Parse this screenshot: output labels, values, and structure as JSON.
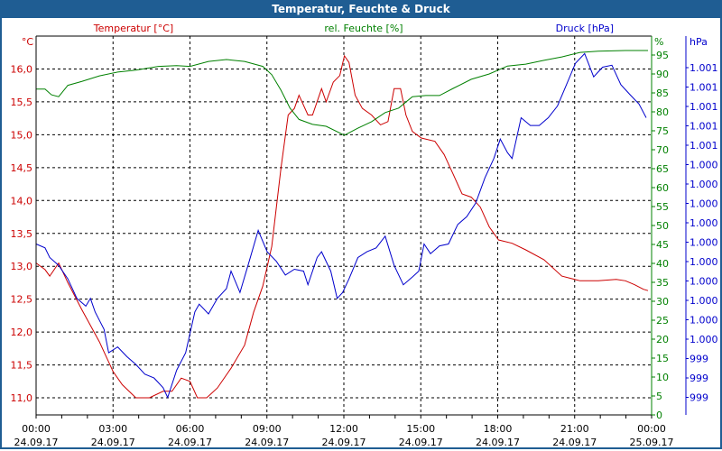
{
  "window": {
    "title": "Temperatur, Feuchte & Druck"
  },
  "chart_data": {
    "type": "line",
    "title": "Temperatur, Feuchte & Druck",
    "x_unit": "hours since 24.09.17 00:00",
    "xlim": [
      0,
      24
    ],
    "x_ticks": [
      {
        "time": "00:00",
        "date": "24.09.17"
      },
      {
        "time": "03:00",
        "date": "24.09.17"
      },
      {
        "time": "06:00",
        "date": "24.09.17"
      },
      {
        "time": "09:00",
        "date": "24.09.17"
      },
      {
        "time": "12:00",
        "date": "24.09.17"
      },
      {
        "time": "15:00",
        "date": "24.09.17"
      },
      {
        "time": "18:00",
        "date": "24.09.17"
      },
      {
        "time": "21:00",
        "date": "24.09.17"
      },
      {
        "time": "00:00",
        "date": "25.09.17"
      }
    ],
    "grid": true,
    "axes": {
      "temperature": {
        "label": "Temperatur [°C]",
        "unit": "°C",
        "ylim": [
          10.74,
          16.5
        ],
        "ticks": [
          "11,0",
          "11,5",
          "12,0",
          "12,5",
          "13,0",
          "13,5",
          "14,0",
          "14,5",
          "15,0",
          "15,5",
          "16,0"
        ],
        "color": "#cc0000"
      },
      "humidity": {
        "label": "rel. Feuchte [%]",
        "unit": "%",
        "ylim": [
          0,
          100
        ],
        "ticks": [
          "0",
          "5",
          "10",
          "15",
          "20",
          "25",
          "30",
          "35",
          "40",
          "45",
          "50",
          "55",
          "60",
          "65",
          "70",
          "75",
          "80",
          "85",
          "90",
          "95"
        ],
        "color": "#008000"
      },
      "pressure": {
        "label": "Druck [hPa]",
        "unit": "hPa",
        "ylim": [
          999.51,
          1001.46
        ],
        "ticks": [
          "1.001",
          "1.001",
          "1.001",
          "1.001",
          "1.001",
          "1.000",
          "1.000",
          "1.000",
          "1.000",
          "1.000",
          "1.000",
          "1.000",
          "1.000",
          "1.000",
          "1.000",
          "999",
          "999",
          "999"
        ],
        "color": "#0000cc"
      }
    },
    "series": [
      {
        "name": "Temperatur",
        "axis": "temperature",
        "color": "#cc0000",
        "x": [
          0,
          0.35,
          0.53,
          0.88,
          1.24,
          1.77,
          2.12,
          2.47,
          3.0,
          3.36,
          3.89,
          4.42,
          4.95,
          5.3,
          5.66,
          6.0,
          6.29,
          6.65,
          7.07,
          7.6,
          8.13,
          8.48,
          8.84,
          9.19,
          9.55,
          9.83,
          10.07,
          10.25,
          10.6,
          10.78,
          11.13,
          11.31,
          11.59,
          11.84,
          12.02,
          12.2,
          12.44,
          12.72,
          13.08,
          13.43,
          13.72,
          13.96,
          14.21,
          14.42,
          14.67,
          15.02,
          15.55,
          15.91,
          16.26,
          16.61,
          16.97,
          17.32,
          17.67,
          18.03,
          18.56,
          19.09,
          19.8,
          20.5,
          21.21,
          21.92,
          22.62,
          22.98,
          23.33,
          23.68,
          23.86
        ],
        "y": [
          13.05,
          12.95,
          12.85,
          13.05,
          12.75,
          12.35,
          12.1,
          11.85,
          11.4,
          11.2,
          11.0,
          11.0,
          11.1,
          11.1,
          11.3,
          11.25,
          11.0,
          11.0,
          11.15,
          11.45,
          11.8,
          12.3,
          12.7,
          13.3,
          14.5,
          15.3,
          15.4,
          15.6,
          15.3,
          15.3,
          15.7,
          15.5,
          15.8,
          15.9,
          16.2,
          16.1,
          15.6,
          15.4,
          15.3,
          15.15,
          15.2,
          15.7,
          15.7,
          15.3,
          15.05,
          14.95,
          14.9,
          14.7,
          14.4,
          14.1,
          14.05,
          13.9,
          13.6,
          13.4,
          13.35,
          13.25,
          13.1,
          12.85,
          12.78,
          12.78,
          12.8,
          12.78,
          12.72,
          12.65,
          12.63
        ]
      },
      {
        "name": "rel. Feuchte",
        "axis": "humidity",
        "color": "#008000",
        "x": [
          0,
          0.35,
          0.6,
          0.88,
          1.24,
          1.77,
          2.47,
          3.18,
          3.89,
          4.77,
          5.48,
          6.0,
          6.72,
          7.42,
          8.13,
          8.84,
          9.19,
          9.55,
          9.9,
          10.25,
          10.78,
          11.31,
          12.02,
          12.55,
          13.08,
          13.61,
          14.14,
          14.67,
          15.2,
          15.73,
          16.26,
          16.97,
          17.67,
          18.38,
          19.09,
          19.8,
          20.5,
          21.21,
          21.92,
          22.98,
          23.86
        ],
        "y": [
          86,
          86,
          84.5,
          84,
          87,
          88,
          89.5,
          90.5,
          91,
          92,
          92.2,
          92,
          93.3,
          93.8,
          93.3,
          92,
          89.8,
          85.7,
          81,
          78,
          76.7,
          76.2,
          73.8,
          75.7,
          77.4,
          79.8,
          81,
          84,
          84.3,
          84.3,
          86.2,
          88.6,
          90,
          92.1,
          92.6,
          93.6,
          94.5,
          95.7,
          96,
          96.2,
          96.2
        ]
      },
      {
        "name": "Druck",
        "axis": "pressure",
        "color": "#0000cc",
        "x": [
          0,
          0.35,
          0.53,
          0.88,
          1.24,
          1.59,
          1.94,
          2.12,
          2.3,
          2.65,
          2.83,
          3.18,
          3.54,
          3.89,
          4.24,
          4.6,
          4.95,
          5.13,
          5.48,
          5.83,
          6.19,
          6.36,
          6.72,
          7.07,
          7.42,
          7.6,
          7.95,
          8.31,
          8.66,
          9.01,
          9.37,
          9.72,
          10.07,
          10.43,
          10.6,
          10.96,
          11.13,
          11.49,
          11.74,
          11.95,
          12.2,
          12.55,
          12.9,
          13.26,
          13.61,
          13.96,
          14.32,
          14.67,
          14.92,
          15.13,
          15.38,
          15.73,
          16.08,
          16.44,
          16.79,
          17.14,
          17.5,
          17.85,
          18.1,
          18.38,
          18.56,
          18.91,
          19.27,
          19.62,
          19.97,
          20.33,
          20.68,
          21.03,
          21.39,
          21.74,
          22.09,
          22.45,
          22.8,
          23.15,
          23.51,
          23.79
        ],
        "y": [
          1000.39,
          1000.37,
          1000.32,
          1000.28,
          1000.21,
          1000.11,
          1000.07,
          1000.11,
          1000.04,
          999.95,
          999.83,
          999.86,
          999.81,
          999.77,
          999.72,
          999.7,
          999.65,
          999.6,
          999.74,
          999.83,
          1000.04,
          1000.08,
          1000.03,
          1000.11,
          1000.16,
          1000.25,
          1000.14,
          1000.3,
          1000.46,
          1000.35,
          1000.3,
          1000.23,
          1000.26,
          1000.25,
          1000.18,
          1000.32,
          1000.35,
          1000.25,
          1000.11,
          1000.14,
          1000.21,
          1000.32,
          1000.35,
          1000.37,
          1000.43,
          1000.28,
          1000.18,
          1000.22,
          1000.25,
          1000.39,
          1000.34,
          1000.38,
          1000.39,
          1000.49,
          1000.53,
          1000.6,
          1000.73,
          1000.83,
          1000.93,
          1000.86,
          1000.83,
          1001.04,
          1001.0,
          1001.0,
          1001.04,
          1001.1,
          1001.21,
          1001.32,
          1001.37,
          1001.25,
          1001.3,
          1001.31,
          1001.21,
          1001.16,
          1001.11,
          1001.04
        ]
      }
    ]
  }
}
